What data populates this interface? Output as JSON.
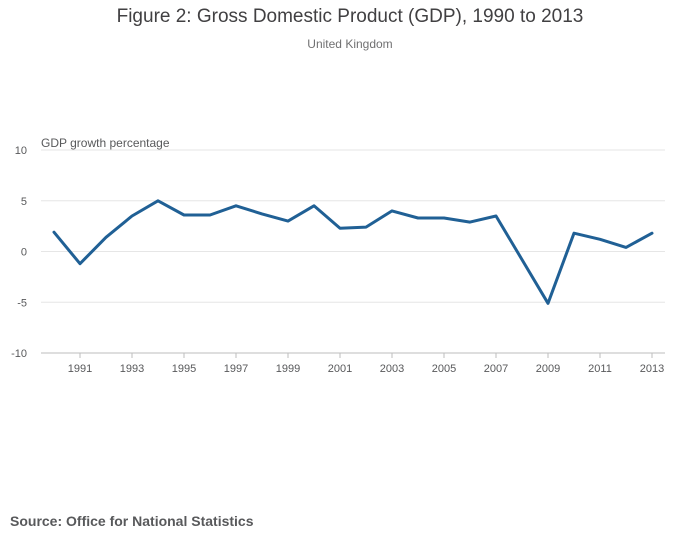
{
  "header": {
    "title": "Figure 2: Gross Domestic Product (GDP), 1990 to 2013",
    "subtitle": "United Kingdom"
  },
  "footer": {
    "source": "Source: Office for National Statistics"
  },
  "colors": {
    "line": "#206095",
    "grid": "#e6e6e6",
    "axis": "#bdbdbd"
  },
  "chart_data": {
    "type": "line",
    "title": "Figure 2: Gross Domestic Product (GDP), 1990 to 2013",
    "subtitle": "United Kingdom",
    "xlabel": "",
    "ylabel": "GDP growth percentage",
    "ylim": [
      -10,
      10
    ],
    "yticks": [
      10,
      5,
      0,
      -5,
      -10
    ],
    "ytick_labels": [
      "10",
      "5",
      "0",
      "-5",
      "-10"
    ],
    "xlim": [
      1990,
      2013
    ],
    "xticks": [
      1991,
      1993,
      1995,
      1997,
      1999,
      2001,
      2003,
      2005,
      2007,
      2009,
      2011,
      2013
    ],
    "xtick_labels": [
      "1991",
      "1993",
      "1995",
      "1997",
      "1999",
      "2001",
      "2003",
      "2005",
      "2007",
      "2009",
      "2011",
      "2013"
    ],
    "grid": true,
    "series": [
      {
        "name": "GDP growth",
        "x": [
          1990,
          1991,
          1992,
          1993,
          1994,
          1995,
          1996,
          1997,
          1998,
          1999,
          2000,
          2001,
          2002,
          2003,
          2004,
          2005,
          2006,
          2007,
          2008,
          2009,
          2010,
          2011,
          2012,
          2013
        ],
        "values": [
          1.9,
          -1.2,
          1.4,
          3.5,
          5.0,
          3.6,
          3.6,
          4.5,
          3.7,
          3.0,
          4.5,
          2.3,
          2.4,
          4.0,
          3.3,
          3.3,
          2.9,
          3.5,
          -0.8,
          -5.1,
          1.8,
          1.2,
          0.4,
          1.8
        ]
      }
    ]
  }
}
